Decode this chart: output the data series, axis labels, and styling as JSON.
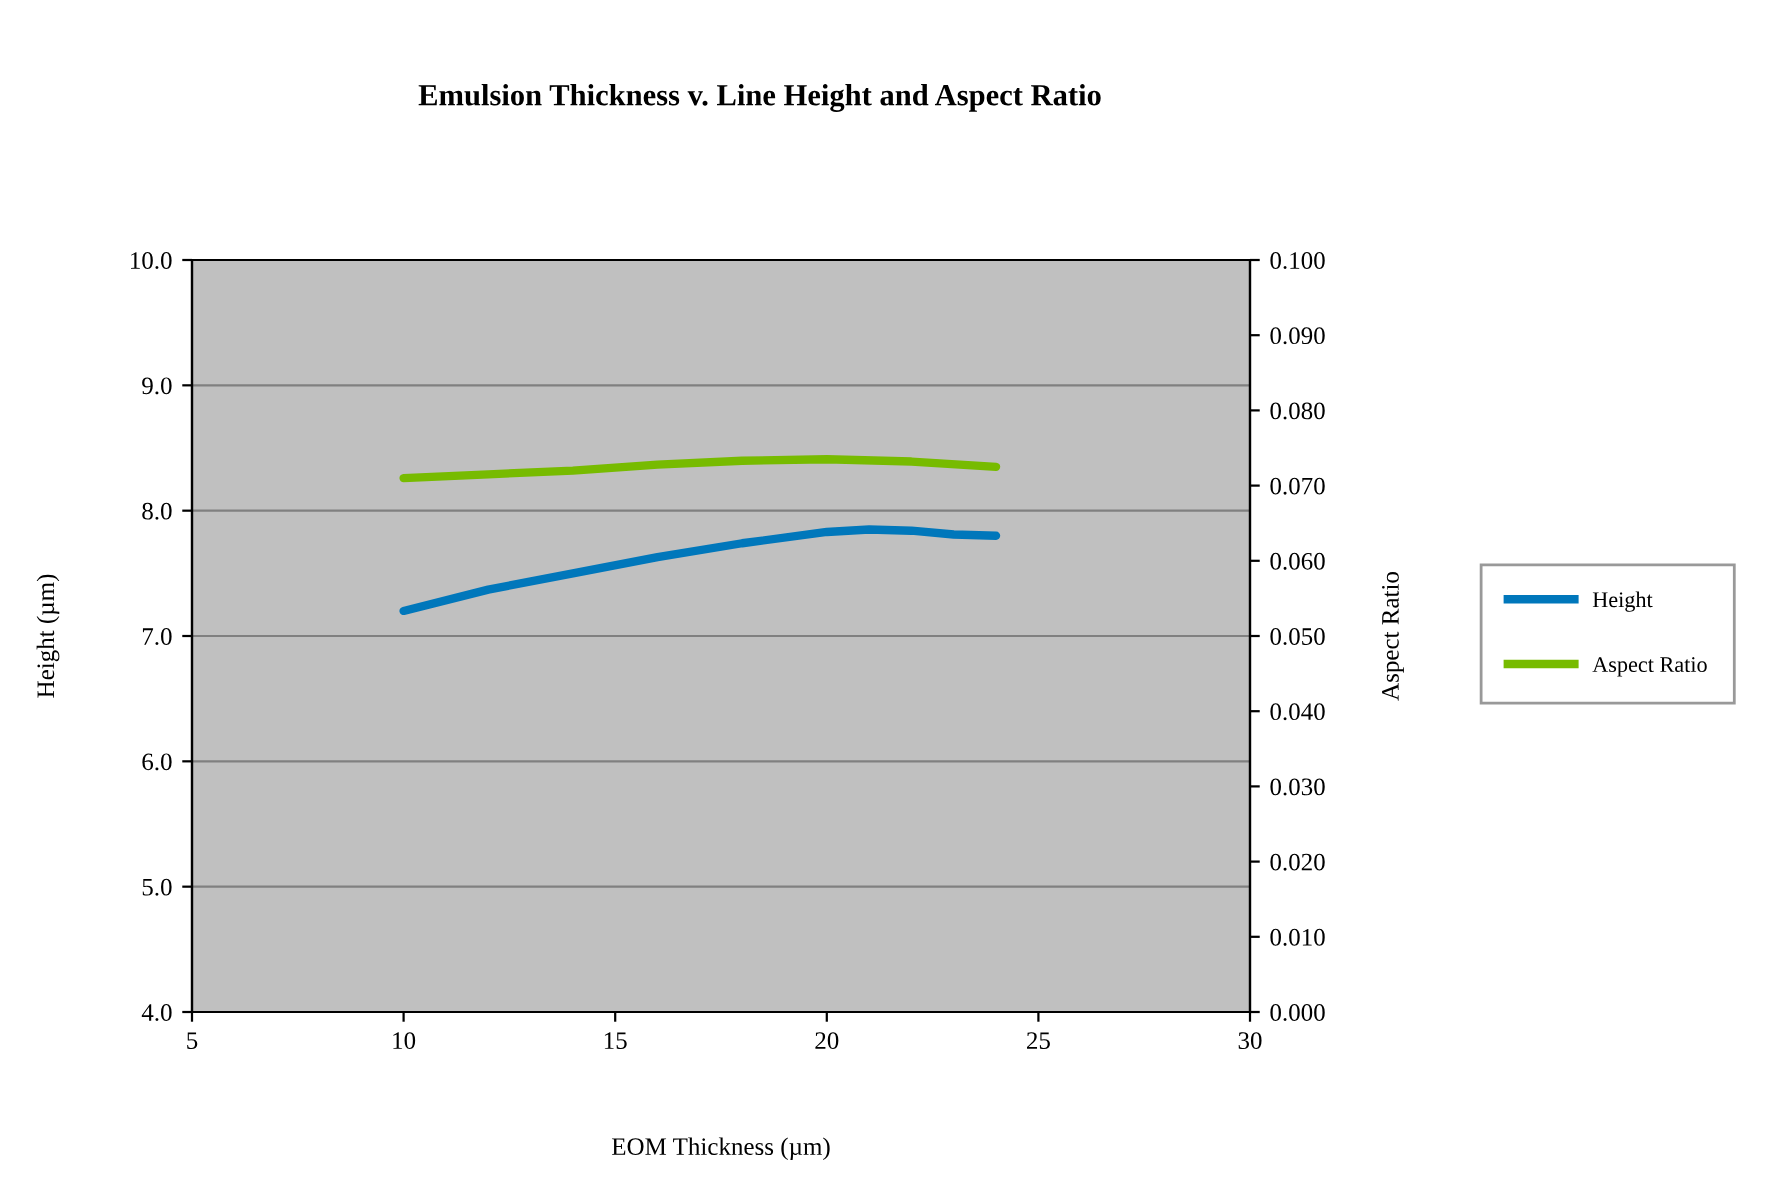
{
  "chart_data": {
    "type": "line",
    "title": "Emulsion Thickness v. Line Height and Aspect Ratio",
    "xlabel": "EOM Thickness (µm)",
    "ylabel": "Height (µm)",
    "y2label": "Aspect Ratio",
    "xlim": [
      5,
      30
    ],
    "xticks": [
      5,
      10,
      15,
      20,
      25,
      30
    ],
    "ylim": [
      4,
      10
    ],
    "yticks": [
      {
        "value": 4,
        "label": "4.0"
      },
      {
        "value": 5,
        "label": "5.0"
      },
      {
        "value": 6,
        "label": "6.0"
      },
      {
        "value": 7,
        "label": "7.0"
      },
      {
        "value": 8,
        "label": "8.0"
      },
      {
        "value": 9,
        "label": "9.0"
      },
      {
        "value": 10,
        "label": "10.0"
      }
    ],
    "y2lim": [
      0,
      0.1
    ],
    "y2ticks": [
      {
        "value": 0,
        "label": "0.000"
      },
      {
        "value": 0.01,
        "label": "0.010"
      },
      {
        "value": 0.02,
        "label": "0.020"
      },
      {
        "value": 0.03,
        "label": "0.030"
      },
      {
        "value": 0.04,
        "label": "0.040"
      },
      {
        "value": 0.05,
        "label": "0.050"
      },
      {
        "value": 0.06,
        "label": "0.060"
      },
      {
        "value": 0.07,
        "label": "0.070"
      },
      {
        "value": 0.08,
        "label": "0.080"
      },
      {
        "value": 0.09,
        "label": "0.090"
      },
      {
        "value": 0.1,
        "label": "0.100"
      }
    ],
    "grid": "y",
    "legend": "right",
    "marker": "none",
    "line_style": "solid",
    "series": [
      {
        "name": "Height",
        "color": "#0077bb",
        "x": [
          10,
          12,
          14,
          16,
          18,
          20,
          21,
          22,
          23,
          24
        ],
        "values": [
          7.2,
          7.37,
          7.5,
          7.63,
          7.74,
          7.83,
          7.85,
          7.84,
          7.81,
          7.8
        ]
      },
      {
        "name": "Aspect Ratio",
        "color": "#77bb00",
        "axis": "y2",
        "x": [
          10,
          12,
          14,
          16,
          18,
          20,
          22,
          24
        ],
        "values": [
          0.071,
          0.0715,
          0.072,
          0.0728,
          0.0733,
          0.0735,
          0.0732,
          0.0725
        ]
      }
    ]
  }
}
